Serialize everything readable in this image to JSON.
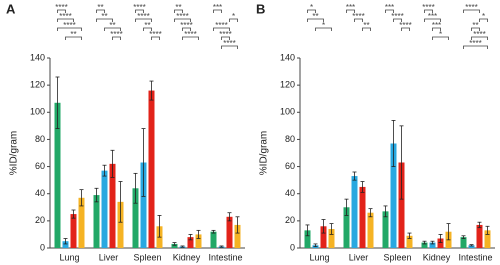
{
  "chart_data": [
    {
      "type": "bar",
      "title": "A",
      "y_label": "%ID/gram",
      "categories": [
        "Lung",
        "Liver",
        "Spleen",
        "Kidney",
        "Intestine"
      ],
      "ylim": [
        0,
        140
      ],
      "yticks": [
        0,
        20,
        40,
        60,
        80,
        100,
        120,
        140
      ],
      "series": [
        {
          "color": "#22a867",
          "values": [
            107,
            39,
            44,
            3,
            12
          ],
          "errors": [
            19,
            5,
            11,
            1,
            1
          ]
        },
        {
          "color": "#29a8e0",
          "values": [
            5,
            57,
            63,
            1,
            1
          ],
          "errors": [
            2,
            4,
            25,
            0.5,
            0.5
          ]
        },
        {
          "color": "#e2231a",
          "values": [
            25,
            62,
            116,
            8,
            23
          ],
          "errors": [
            3,
            10,
            7,
            2,
            3
          ]
        },
        {
          "color": "#f5b324",
          "values": [
            37,
            34,
            16,
            10,
            17
          ],
          "errors": [
            6,
            15,
            8,
            3,
            6
          ]
        }
      ],
      "significance": [
        [
          {
            "from": 0,
            "to": 1,
            "label": "****"
          },
          {
            "from": 0,
            "to": 2,
            "label": "****"
          },
          {
            "from": 0,
            "to": 3,
            "label": "****"
          },
          {
            "from": 1,
            "to": 3,
            "label": "**"
          }
        ],
        [
          {
            "from": 0,
            "to": 1,
            "label": "**"
          },
          {
            "from": 0,
            "to": 2,
            "label": "**"
          },
          {
            "from": 1,
            "to": 3,
            "label": "**"
          },
          {
            "from": 2,
            "to": 3,
            "label": "****"
          }
        ],
        [
          {
            "from": 0,
            "to": 1,
            "label": "****"
          },
          {
            "from": 0,
            "to": 2,
            "label": "****"
          },
          {
            "from": 1,
            "to": 2,
            "label": "**"
          },
          {
            "from": 2,
            "to": 3,
            "label": "****"
          }
        ],
        [
          {
            "from": 0,
            "to": 1,
            "label": "**"
          },
          {
            "from": 0,
            "to": 2,
            "label": "****"
          },
          {
            "from": 1,
            "to": 2,
            "label": "****"
          },
          {
            "from": 1,
            "to": 3,
            "label": "****"
          }
        ],
        [
          {
            "from": 0,
            "to": 1,
            "label": "***"
          },
          {
            "from": 2,
            "to": 3,
            "label": "*"
          },
          {
            "from": 0,
            "to": 2,
            "label": "****"
          },
          {
            "from": 1,
            "to": 2,
            "label": "****"
          },
          {
            "from": 1,
            "to": 3,
            "label": "****"
          }
        ]
      ]
    },
    {
      "type": "bar",
      "title": "B",
      "y_label": "%ID/gram",
      "categories": [
        "Lung",
        "Liver",
        "Spleen",
        "Kidney",
        "Intestine"
      ],
      "ylim": [
        0,
        140
      ],
      "yticks": [
        0,
        20,
        40,
        60,
        80,
        100,
        120,
        140
      ],
      "series": [
        {
          "color": "#22a867",
          "values": [
            13,
            30,
            27,
            4,
            8
          ],
          "errors": [
            4,
            6,
            4,
            1,
            1
          ]
        },
        {
          "color": "#29a8e0",
          "values": [
            2,
            53,
            77,
            4,
            2
          ],
          "errors": [
            1,
            3,
            17,
            1,
            0.5
          ]
        },
        {
          "color": "#e2231a",
          "values": [
            16,
            45,
            63,
            7,
            17
          ],
          "errors": [
            5,
            4,
            27,
            3,
            2
          ]
        },
        {
          "color": "#f5b324",
          "values": [
            14,
            26,
            9,
            12,
            13
          ],
          "errors": [
            4,
            3,
            2,
            6,
            3
          ]
        }
      ],
      "significance": [
        [
          {
            "from": 0,
            "to": 1,
            "label": "*"
          },
          {
            "from": 0,
            "to": 2,
            "label": "**"
          },
          {
            "from": 1,
            "to": 3,
            "label": "*"
          }
        ],
        [
          {
            "from": 0,
            "to": 1,
            "label": "***"
          },
          {
            "from": 1,
            "to": 2,
            "label": "****"
          },
          {
            "from": 2,
            "to": 3,
            "label": "**"
          }
        ],
        [
          {
            "from": 0,
            "to": 1,
            "label": "***"
          },
          {
            "from": 1,
            "to": 2,
            "label": "****"
          },
          {
            "from": 2,
            "to": 3,
            "label": "****"
          }
        ],
        [
          {
            "from": 0,
            "to": 1,
            "label": "****"
          },
          {
            "from": 0,
            "to": 2,
            "label": "***"
          },
          {
            "from": 1,
            "to": 2,
            "label": "***"
          },
          {
            "from": 1,
            "to": 3,
            "label": "*"
          }
        ],
        [
          {
            "from": 0,
            "to": 2,
            "label": "****"
          },
          {
            "from": 2,
            "to": 3,
            "label": "*"
          },
          {
            "from": 1,
            "to": 2,
            "label": "**"
          },
          {
            "from": 1,
            "to": 3,
            "label": "****"
          },
          {
            "from": 0,
            "to": 3,
            "label": "****"
          }
        ]
      ]
    }
  ]
}
